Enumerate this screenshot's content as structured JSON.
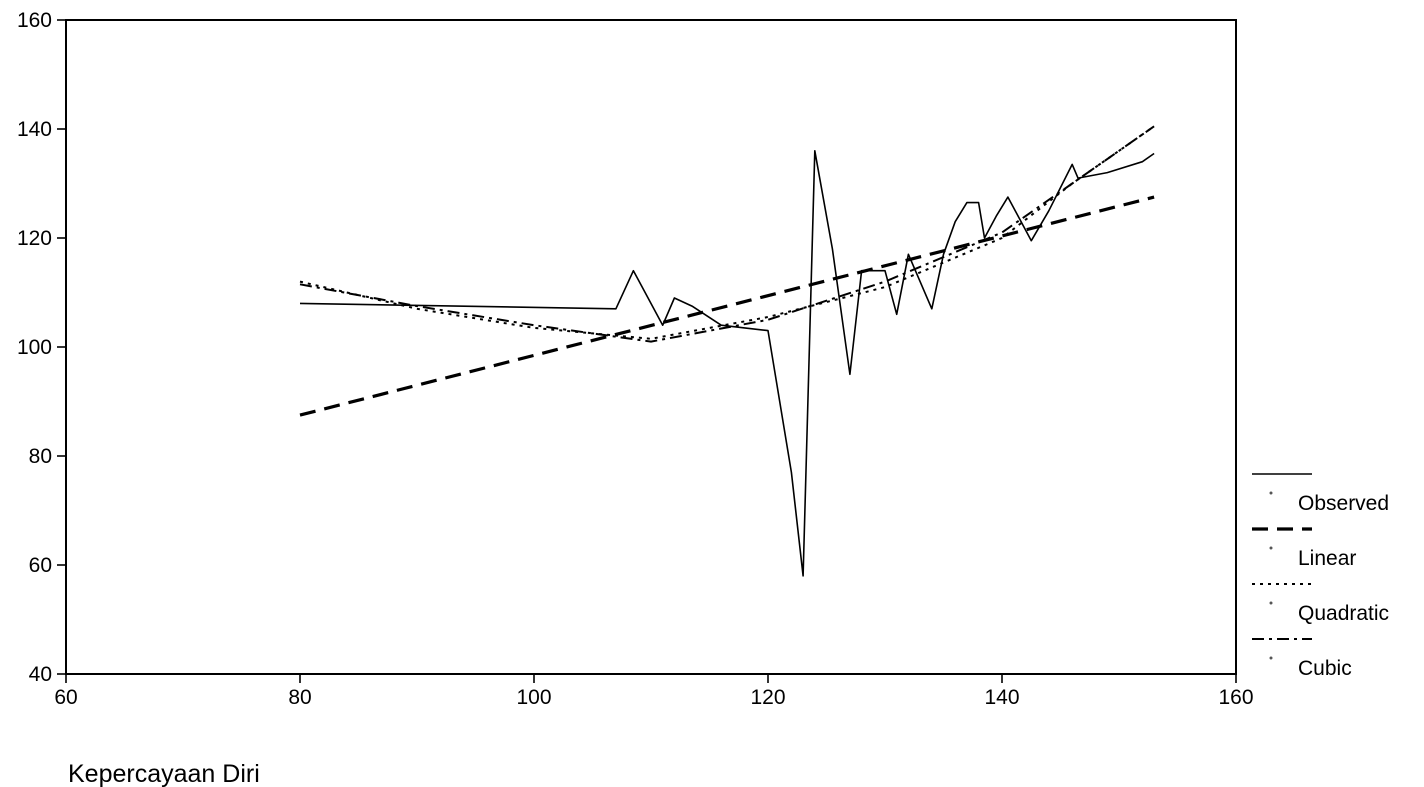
{
  "chart_data": {
    "type": "line",
    "title": "",
    "xlabel": "Kepercayaan Diri",
    "ylabel": "",
    "xlim": [
      60,
      160
    ],
    "ylim": [
      40,
      160
    ],
    "xticks": [
      60,
      80,
      100,
      120,
      140,
      160
    ],
    "yticks": [
      40,
      60,
      80,
      100,
      120,
      140,
      160
    ],
    "grid": false,
    "legend_position": "right",
    "series": [
      {
        "name": "Observed",
        "style": "solid",
        "points": [
          [
            80,
            108
          ],
          [
            107,
            107
          ],
          [
            108.5,
            114
          ],
          [
            111,
            104
          ],
          [
            112,
            109
          ],
          [
            113.5,
            107.5
          ],
          [
            116,
            104
          ],
          [
            118,
            103.5
          ],
          [
            120,
            103
          ],
          [
            122,
            77
          ],
          [
            123,
            58
          ],
          [
            124,
            136
          ],
          [
            125.5,
            118
          ],
          [
            127,
            95
          ],
          [
            128,
            114
          ],
          [
            129,
            114
          ],
          [
            130,
            114
          ],
          [
            131,
            106
          ],
          [
            132,
            117
          ],
          [
            133,
            112
          ],
          [
            134,
            107
          ],
          [
            135,
            117
          ],
          [
            136,
            123
          ],
          [
            137,
            126.5
          ],
          [
            138,
            126.5
          ],
          [
            138.5,
            120
          ],
          [
            139.5,
            124
          ],
          [
            140.5,
            127.5
          ],
          [
            142.5,
            119.5
          ],
          [
            144,
            125
          ],
          [
            146,
            133.5
          ],
          [
            146.5,
            131
          ],
          [
            149,
            132
          ],
          [
            152,
            134
          ],
          [
            153,
            135.5
          ]
        ]
      },
      {
        "name": "Linear",
        "style": "dashed",
        "points": [
          [
            80,
            87.5
          ],
          [
            153,
            127.5
          ]
        ]
      },
      {
        "name": "Quadratic",
        "style": "dotted",
        "points": [
          [
            80,
            112
          ],
          [
            90,
            107
          ],
          [
            100,
            103.5
          ],
          [
            110,
            101.5
          ],
          [
            120,
            105.5
          ],
          [
            130,
            111
          ],
          [
            140,
            120
          ],
          [
            146,
            130
          ],
          [
            153,
            140.5
          ]
        ]
      },
      {
        "name": "Cubic",
        "style": "dashdot",
        "points": [
          [
            80,
            111.5
          ],
          [
            90,
            107.5
          ],
          [
            100,
            104
          ],
          [
            110,
            101
          ],
          [
            120,
            105
          ],
          [
            130,
            112
          ],
          [
            140,
            121
          ],
          [
            146,
            130
          ],
          [
            153,
            140.5
          ]
        ]
      }
    ],
    "colors": {
      "line": "#000000",
      "background": "#ffffff"
    }
  }
}
